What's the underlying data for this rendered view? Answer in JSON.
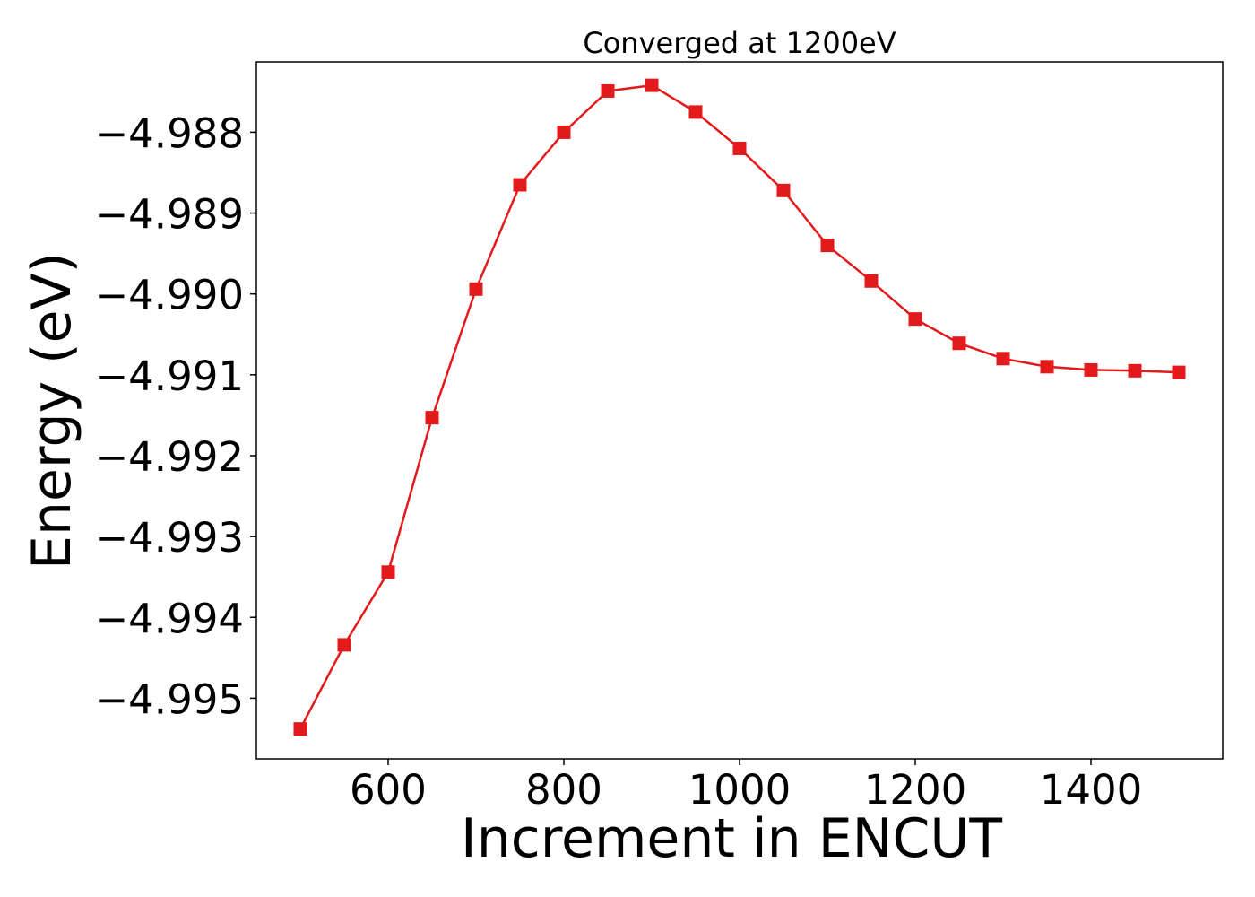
{
  "chart_data": {
    "type": "line",
    "title": "Converged at 1200eV",
    "xlabel": "Increment in ENCUT",
    "ylabel": "Energy (eV)",
    "xlim": [
      450,
      1550
    ],
    "ylim": [
      -4.99575,
      -4.98713
    ],
    "xticks": [
      600,
      800,
      1000,
      1200,
      1400
    ],
    "xtick_labels": [
      "600",
      "800",
      "1000",
      "1200",
      "1400"
    ],
    "yticks": [
      -4.988,
      -4.989,
      -4.99,
      -4.991,
      -4.992,
      -4.993,
      -4.994,
      -4.995
    ],
    "ytick_labels": [
      "−4.988",
      "−4.989",
      "−4.990",
      "−4.991",
      "−4.992",
      "−4.993",
      "−4.994",
      "−4.995"
    ],
    "grid": false,
    "series": [
      {
        "color": "#e31a1c",
        "marker": "square",
        "x": [
          500,
          550,
          600,
          650,
          700,
          750,
          800,
          850,
          900,
          950,
          1000,
          1050,
          1100,
          1150,
          1200,
          1250,
          1300,
          1350,
          1400,
          1450,
          1500
        ],
        "y": [
          -4.99538,
          -4.99434,
          -4.99344,
          -4.99153,
          -4.98994,
          -4.98865,
          -4.988,
          -4.98749,
          -4.98742,
          -4.98775,
          -4.9882,
          -4.98872,
          -4.9894,
          -4.98984,
          -4.99031,
          -4.99061,
          -4.9908,
          -4.9909,
          -4.99094,
          -4.99095,
          -4.99097
        ]
      }
    ]
  }
}
